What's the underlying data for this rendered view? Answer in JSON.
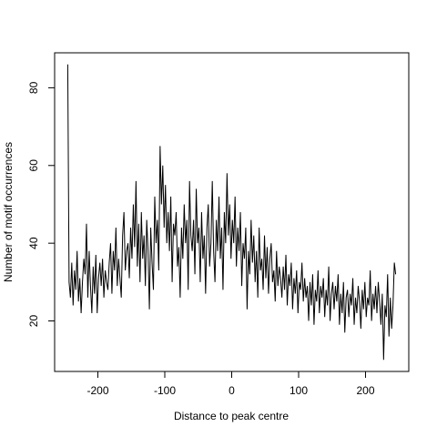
{
  "chart_data": {
    "type": "line",
    "x_label": "Distance to peak centre",
    "y_label": "Number of motif occurrences",
    "color": "#000000",
    "xlim": [
      -264.6,
      264.6
    ],
    "xticks": [
      -200,
      -100,
      0,
      100,
      200
    ],
    "ylim": [
      7,
      89
    ],
    "yticks": [
      20,
      40,
      60,
      80
    ],
    "x": [
      -245,
      -243,
      -241,
      -239,
      -237,
      -235,
      -233,
      -231,
      -229,
      -227,
      -225,
      -223,
      -221,
      -219,
      -217,
      -215,
      -213,
      -211,
      -209,
      -207,
      -205,
      -203,
      -201,
      -199,
      -197,
      -195,
      -193,
      -191,
      -189,
      -187,
      -185,
      -183,
      -181,
      -179,
      -177,
      -175,
      -173,
      -171,
      -169,
      -167,
      -165,
      -163,
      -161,
      -159,
      -157,
      -155,
      -153,
      -151,
      -149,
      -147,
      -145,
      -143,
      -141,
      -139,
      -137,
      -135,
      -133,
      -131,
      -129,
      -127,
      -125,
      -123,
      -121,
      -119,
      -117,
      -115,
      -113,
      -111,
      -109,
      -107,
      -105,
      -103,
      -101,
      -99,
      -97,
      -95,
      -93,
      -91,
      -89,
      -87,
      -85,
      -83,
      -81,
      -79,
      -77,
      -75,
      -73,
      -71,
      -69,
      -67,
      -65,
      -63,
      -61,
      -59,
      -57,
      -55,
      -53,
      -51,
      -49,
      -47,
      -45,
      -43,
      -41,
      -39,
      -37,
      -35,
      -33,
      -31,
      -29,
      -27,
      -25,
      -23,
      -21,
      -19,
      -17,
      -15,
      -13,
      -11,
      -9,
      -7,
      -5,
      -3,
      -1,
      1,
      3,
      5,
      7,
      9,
      11,
      13,
      15,
      17,
      19,
      21,
      23,
      25,
      27,
      29,
      31,
      33,
      35,
      37,
      39,
      41,
      43,
      45,
      47,
      49,
      51,
      53,
      55,
      57,
      59,
      61,
      63,
      65,
      67,
      69,
      71,
      73,
      75,
      77,
      79,
      81,
      83,
      85,
      87,
      89,
      91,
      93,
      95,
      97,
      99,
      101,
      103,
      105,
      107,
      109,
      111,
      113,
      115,
      117,
      119,
      121,
      123,
      125,
      127,
      129,
      131,
      133,
      135,
      137,
      139,
      141,
      143,
      145,
      147,
      149,
      151,
      153,
      155,
      157,
      159,
      161,
      163,
      165,
      167,
      169,
      171,
      173,
      175,
      177,
      179,
      181,
      183,
      185,
      187,
      189,
      191,
      193,
      195,
      197,
      199,
      201,
      203,
      205,
      207,
      209,
      211,
      213,
      215,
      217,
      219,
      221,
      223,
      225,
      227,
      229,
      231,
      233,
      235,
      237,
      239,
      241,
      243,
      245
    ],
    "values": [
      86,
      30,
      26,
      35,
      24,
      33,
      28,
      38,
      25,
      31,
      22,
      30,
      36,
      32,
      45,
      26,
      38,
      29,
      22,
      34,
      27,
      37,
      22,
      31,
      35,
      29,
      36,
      26,
      33,
      30,
      28,
      35,
      40,
      27,
      38,
      33,
      44,
      29,
      36,
      31,
      26,
      42,
      48,
      33,
      38,
      40,
      31,
      44,
      36,
      50,
      39,
      56,
      34,
      45,
      30,
      48,
      36,
      42,
      29,
      46,
      38,
      23,
      44,
      35,
      28,
      52,
      40,
      46,
      33,
      65,
      50,
      60,
      44,
      55,
      40,
      48,
      38,
      52,
      30,
      45,
      42,
      48,
      34,
      39,
      26,
      44,
      36,
      50,
      40,
      46,
      28,
      56,
      42,
      38,
      46,
      32,
      54,
      40,
      44,
      30,
      48,
      36,
      42,
      27,
      44,
      50,
      34,
      40,
      56,
      38,
      30,
      46,
      38,
      52,
      36,
      44,
      28,
      48,
      40,
      58,
      42,
      50,
      36,
      46,
      40,
      52,
      34,
      44,
      38,
      48,
      29,
      40,
      36,
      44,
      23,
      38,
      32,
      46,
      35,
      42,
      30,
      38,
      26,
      44,
      33,
      36,
      28,
      42,
      31,
      39,
      27,
      36,
      40,
      30,
      33,
      25,
      38,
      29,
      34,
      31,
      26,
      34,
      28,
      37,
      24,
      32,
      29,
      35,
      23,
      31,
      27,
      33,
      22,
      30,
      28,
      35,
      25,
      31,
      26,
      29,
      20,
      30,
      24,
      32,
      19,
      28,
      25,
      33,
      22,
      29,
      26,
      31,
      21,
      28,
      24,
      34,
      20,
      27,
      30,
      23,
      29,
      25,
      32,
      19,
      27,
      22,
      30,
      17,
      26,
      28,
      21,
      27,
      24,
      31,
      19,
      26,
      22,
      29,
      25,
      18,
      28,
      23,
      30,
      21,
      26,
      24,
      33,
      20,
      27,
      23,
      29,
      22,
      30,
      25,
      19,
      27,
      10,
      24,
      21,
      32,
      16,
      26,
      18,
      24,
      35,
      32
    ]
  }
}
